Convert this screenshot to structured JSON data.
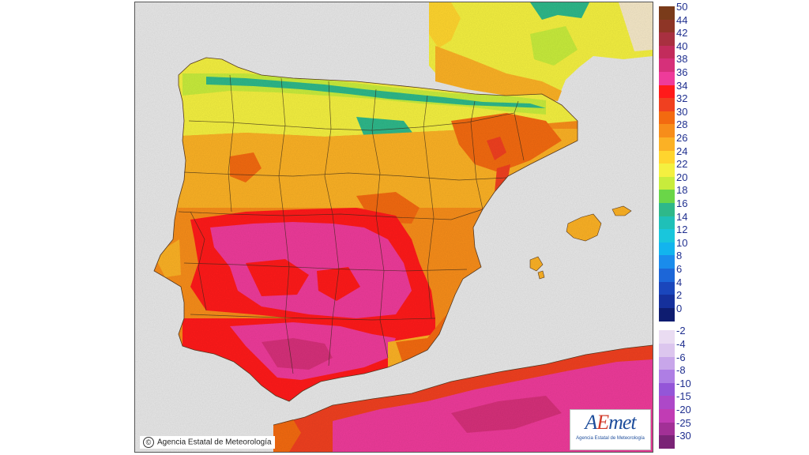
{
  "map": {
    "copyright": "Agencia Estatal de Meteorología",
    "copyright_icon": "copyright-icon",
    "logo": {
      "mark_a": "A",
      "mark_e": "E",
      "mark_rest": "met",
      "subtitle": "Agencia Estatal de Meteorología"
    }
  },
  "legend": {
    "positive": [
      {
        "label": "50",
        "color": "#7a3b1a"
      },
      {
        "label": "44",
        "color": "#8e3526"
      },
      {
        "label": "42",
        "color": "#a83040"
      },
      {
        "label": "40",
        "color": "#c22c5c"
      },
      {
        "label": "38",
        "color": "#d6307a"
      },
      {
        "label": "36",
        "color": "#ee3b9a"
      },
      {
        "label": "34",
        "color": "#ff1a1a"
      },
      {
        "label": "32",
        "color": "#f04020"
      },
      {
        "label": "30",
        "color": "#f36a10"
      },
      {
        "label": "28",
        "color": "#f78d1a"
      },
      {
        "label": "26",
        "color": "#fbb125"
      },
      {
        "label": "24",
        "color": "#ffd52e"
      },
      {
        "label": "22",
        "color": "#f4f040"
      },
      {
        "label": "20",
        "color": "#c8ec3c"
      },
      {
        "label": "18",
        "color": "#6ad648"
      },
      {
        "label": "16",
        "color": "#2eb88a"
      },
      {
        "label": "14",
        "color": "#1fc0b8"
      },
      {
        "label": "12",
        "color": "#19c6dc"
      },
      {
        "label": "10",
        "color": "#12b4ee"
      },
      {
        "label": "8",
        "color": "#1a8cec"
      },
      {
        "label": "6",
        "color": "#1c66d8"
      },
      {
        "label": "4",
        "color": "#1a46bc"
      },
      {
        "label": "2",
        "color": "#15309c"
      },
      {
        "label": "0",
        "color": "#0e1c70"
      }
    ],
    "negative": [
      {
        "label": "-2",
        "color": "#eadcf2"
      },
      {
        "label": "-4",
        "color": "#dcc6ee"
      },
      {
        "label": "-6",
        "color": "#c8a6ea"
      },
      {
        "label": "-8",
        "color": "#ae7ee4"
      },
      {
        "label": "-10",
        "color": "#9456d8"
      },
      {
        "label": "-15",
        "color": "#ad48c8"
      },
      {
        "label": "-20",
        "color": "#c13cb4"
      },
      {
        "label": "-25",
        "color": "#a23096"
      },
      {
        "label": "-30",
        "color": "#7a2476"
      }
    ]
  }
}
